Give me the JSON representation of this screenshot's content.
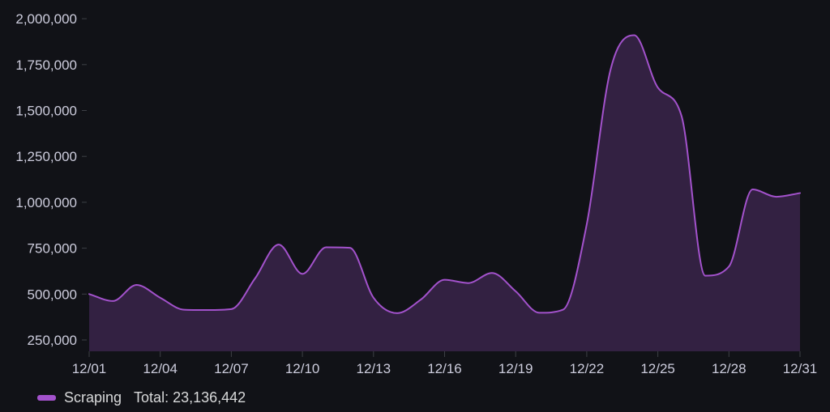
{
  "legend": {
    "series_label": "Scraping",
    "total_label": "Total: 23,136,442"
  },
  "chart_data": {
    "type": "area",
    "title": "",
    "series_name": "Scraping",
    "total": "23,136,442",
    "x": [
      "12/01",
      "12/02",
      "12/03",
      "12/04",
      "12/05",
      "12/06",
      "12/07",
      "12/08",
      "12/09",
      "12/10",
      "12/11",
      "12/12",
      "12/13",
      "12/14",
      "12/15",
      "12/16",
      "12/17",
      "12/18",
      "12/19",
      "12/20",
      "12/21",
      "12/22",
      "12/23",
      "12/24",
      "12/25",
      "12/26",
      "12/27",
      "12/28",
      "12/29",
      "12/30",
      "12/31"
    ],
    "values": [
      500000,
      462000,
      550000,
      480000,
      415000,
      413000,
      418000,
      585000,
      770000,
      610000,
      755000,
      752000,
      480000,
      396000,
      470000,
      578000,
      560000,
      615000,
      515000,
      398000,
      415000,
      880000,
      1720000,
      1910000,
      1625000,
      1470000,
      600000,
      650000,
      1070000,
      1030000,
      1050000
    ],
    "x_tick_labels": [
      "12/01",
      "12/04",
      "12/07",
      "12/10",
      "12/13",
      "12/16",
      "12/19",
      "12/22",
      "12/25",
      "12/28",
      "12/31"
    ],
    "x_tick_day_index": [
      0,
      3,
      6,
      9,
      12,
      15,
      18,
      21,
      24,
      27,
      30
    ],
    "y_ticks": [
      250000,
      500000,
      750000,
      1000000,
      1250000,
      1500000,
      1750000,
      2000000
    ],
    "y_tick_labels": [
      "250,000",
      "500,000",
      "750,000",
      "1,000,000",
      "1,250,000",
      "1,500,000",
      "1,750,000",
      "2,000,000"
    ],
    "ylim": [
      188000,
      2060000
    ],
    "grid": false,
    "interpolation": "smooth",
    "legend_position": "bottom-left",
    "colors": {
      "background": "#111217",
      "line": "#a352cc",
      "fill_opacity": 0.24,
      "axis_text": "#ccccdc",
      "tick": "#3d4046",
      "legend_text": "#d8d9da"
    }
  }
}
